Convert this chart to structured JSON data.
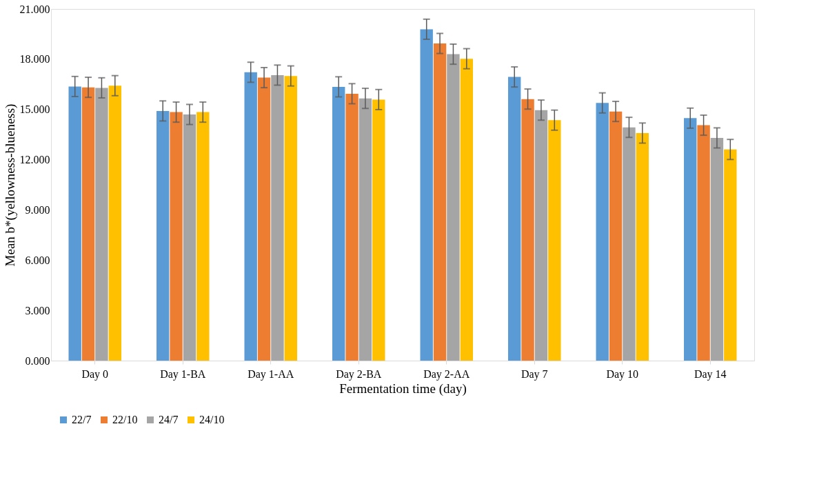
{
  "chart_data": {
    "type": "bar",
    "xlabel": "Fermentation time (day)",
    "ylabel": "Mean b*(yellowness-blueness)",
    "categories": [
      "Day  0",
      "Day 1-BA",
      "Day 1-AA",
      "Day 2-BA",
      "Day 2-AA",
      "Day 7",
      "Day 10",
      "Day 14"
    ],
    "series": [
      {
        "name": "22/7",
        "color": "#5b9bd5",
        "values": [
          16.37,
          14.91,
          17.22,
          16.35,
          19.79,
          16.94,
          15.39,
          14.48
        ],
        "errors": [
          0.6,
          0.6,
          0.6,
          0.6,
          0.6,
          0.6,
          0.6,
          0.6
        ]
      },
      {
        "name": "22/10",
        "color": "#ed7d31",
        "values": [
          16.32,
          14.84,
          16.9,
          15.94,
          18.94,
          15.62,
          14.88,
          14.06
        ],
        "errors": [
          0.6,
          0.6,
          0.6,
          0.6,
          0.6,
          0.6,
          0.6,
          0.6
        ]
      },
      {
        "name": "24/7",
        "color": "#a5a5a5",
        "values": [
          16.29,
          14.7,
          17.05,
          15.66,
          18.3,
          14.96,
          13.93,
          13.3
        ],
        "errors": [
          0.6,
          0.6,
          0.6,
          0.6,
          0.6,
          0.6,
          0.6,
          0.6
        ]
      },
      {
        "name": "24/10",
        "color": "#ffc000",
        "values": [
          16.42,
          14.84,
          17.0,
          15.59,
          18.03,
          14.36,
          13.59,
          12.61
        ],
        "errors": [
          0.6,
          0.6,
          0.6,
          0.6,
          0.6,
          0.6,
          0.6,
          0.6
        ]
      }
    ],
    "ylim": [
      0,
      21
    ],
    "yticks": [
      {
        "value": 0,
        "label": "0.000"
      },
      {
        "value": 3,
        "label": "3.000"
      },
      {
        "value": 6,
        "label": "6.000"
      },
      {
        "value": 9,
        "label": "9.000"
      },
      {
        "value": 12,
        "label": "12.000"
      },
      {
        "value": 15,
        "label": "15.000"
      },
      {
        "value": 18,
        "label": "18.000"
      },
      {
        "value": 21,
        "label": "21.000"
      }
    ],
    "grid": false,
    "legend": "bottom"
  }
}
